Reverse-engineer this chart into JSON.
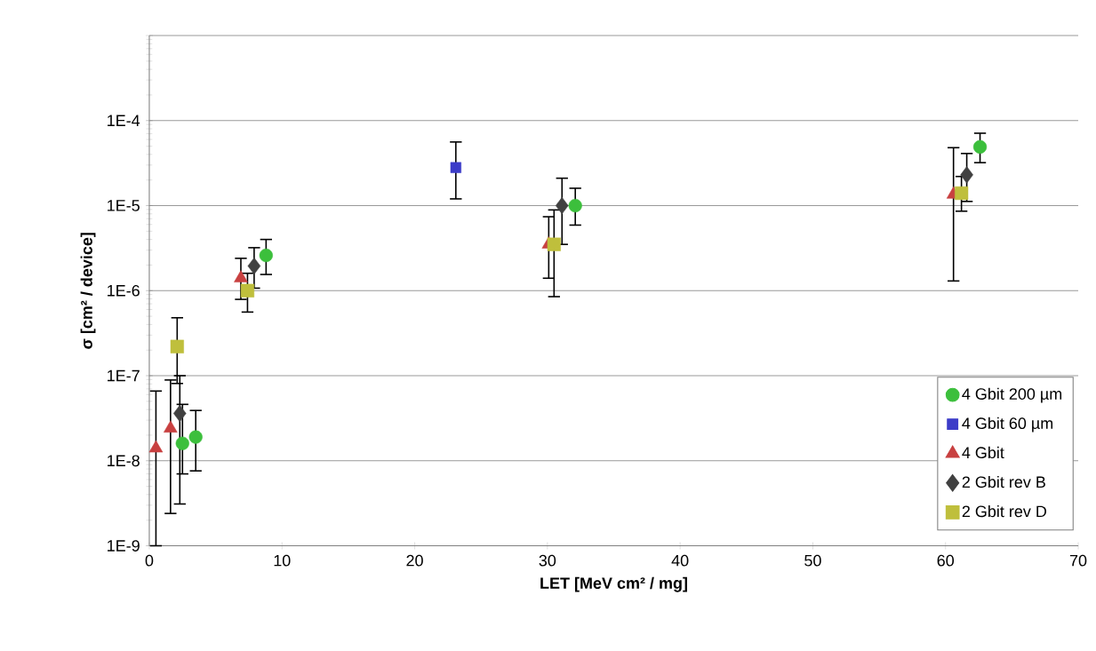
{
  "chart_data": {
    "type": "scatter",
    "xlabel": "LET [MeV cm² / mg]",
    "ylabel": "σ [cm² / device]",
    "log": "y",
    "grid": "y",
    "legend": "bottom right",
    "xlim": [
      0,
      70
    ],
    "xticks": [
      0,
      10,
      20,
      30,
      40,
      50,
      60,
      70
    ],
    "ylim": [
      1e-09,
      0.001
    ],
    "yticks": [
      {
        "value": 1e-09,
        "label": "1E-9"
      },
      {
        "value": 1e-08,
        "label": "1E-8"
      },
      {
        "value": 1e-07,
        "label": "1E-7"
      },
      {
        "value": 1e-06,
        "label": "1E-6"
      },
      {
        "value": 1e-05,
        "label": "1E-5"
      },
      {
        "value": 0.0001,
        "label": "1E-4"
      },
      {
        "value": 0.001,
        "label": null
      }
    ],
    "series": [
      {
        "name": "4 Gbit 200 µm",
        "color": "#3cbf3c",
        "marker": "circle",
        "x": [
          2.5,
          3.5,
          8.8,
          32.1,
          62.6
        ],
        "values": [
          1.6e-08,
          1.9e-08,
          2.6e-06,
          1e-05,
          4.9e-05
        ],
        "errors": [
          [
            7e-09,
            4.6e-08
          ],
          [
            7.6e-09,
            3.9e-08
          ],
          [
            1.55e-06,
            4e-06
          ],
          [
            5.9e-06,
            1.6e-05
          ],
          [
            3.2e-05,
            7.1e-05
          ]
        ]
      },
      {
        "name": "4 Gbit 60 µm",
        "color": "#3c3cc8",
        "marker": "square",
        "x": [
          23.1
        ],
        "values": [
          2.8e-05
        ],
        "errors": [
          [
            1.2e-05,
            5.6e-05
          ]
        ]
      },
      {
        "name": "4 Gbit",
        "color": "#c84040",
        "marker": "triangle",
        "x": [
          0.5,
          1.6,
          6.9,
          30.1,
          60.6
        ],
        "values": [
          1.4e-08,
          2.4e-08,
          1.4e-06,
          3.5e-06,
          1.35e-05
        ],
        "errors": [
          [
            1e-09,
            6.6e-08
          ],
          [
            2.4e-09,
            8.9e-08
          ],
          [
            7.9e-07,
            2.4e-06
          ],
          [
            1.4e-06,
            7.4e-06
          ],
          [
            1.3e-06,
            4.8e-05
          ]
        ]
      },
      {
        "name": "2 Gbit rev B",
        "color": "#404040",
        "marker": "diamond",
        "x": [
          2.3,
          7.9,
          31.1,
          61.6
        ],
        "values": [
          3.6e-08,
          1.95e-06,
          1e-05,
          2.3e-05
        ],
        "errors": [
          [
            3.1e-09,
            1e-07
          ],
          [
            1.07e-06,
            3.2e-06
          ],
          [
            3.5e-06,
            2.1e-05
          ],
          [
            1.12e-05,
            4.1e-05
          ]
        ]
      },
      {
        "name": "2 Gbit rev D",
        "color": "#bfbf3c",
        "marker": "square",
        "x": [
          2.1,
          7.4,
          30.5,
          61.2
        ],
        "values": [
          2.2e-07,
          1e-06,
          3.5e-06,
          1.4e-05
        ],
        "errors": [
          [
            8.1e-08,
            4.8e-07
          ],
          [
            5.6e-07,
            1.6e-06
          ],
          [
            8.5e-07,
            8.9e-06
          ],
          [
            8.6e-06,
            2.2e-05
          ]
        ]
      }
    ]
  }
}
